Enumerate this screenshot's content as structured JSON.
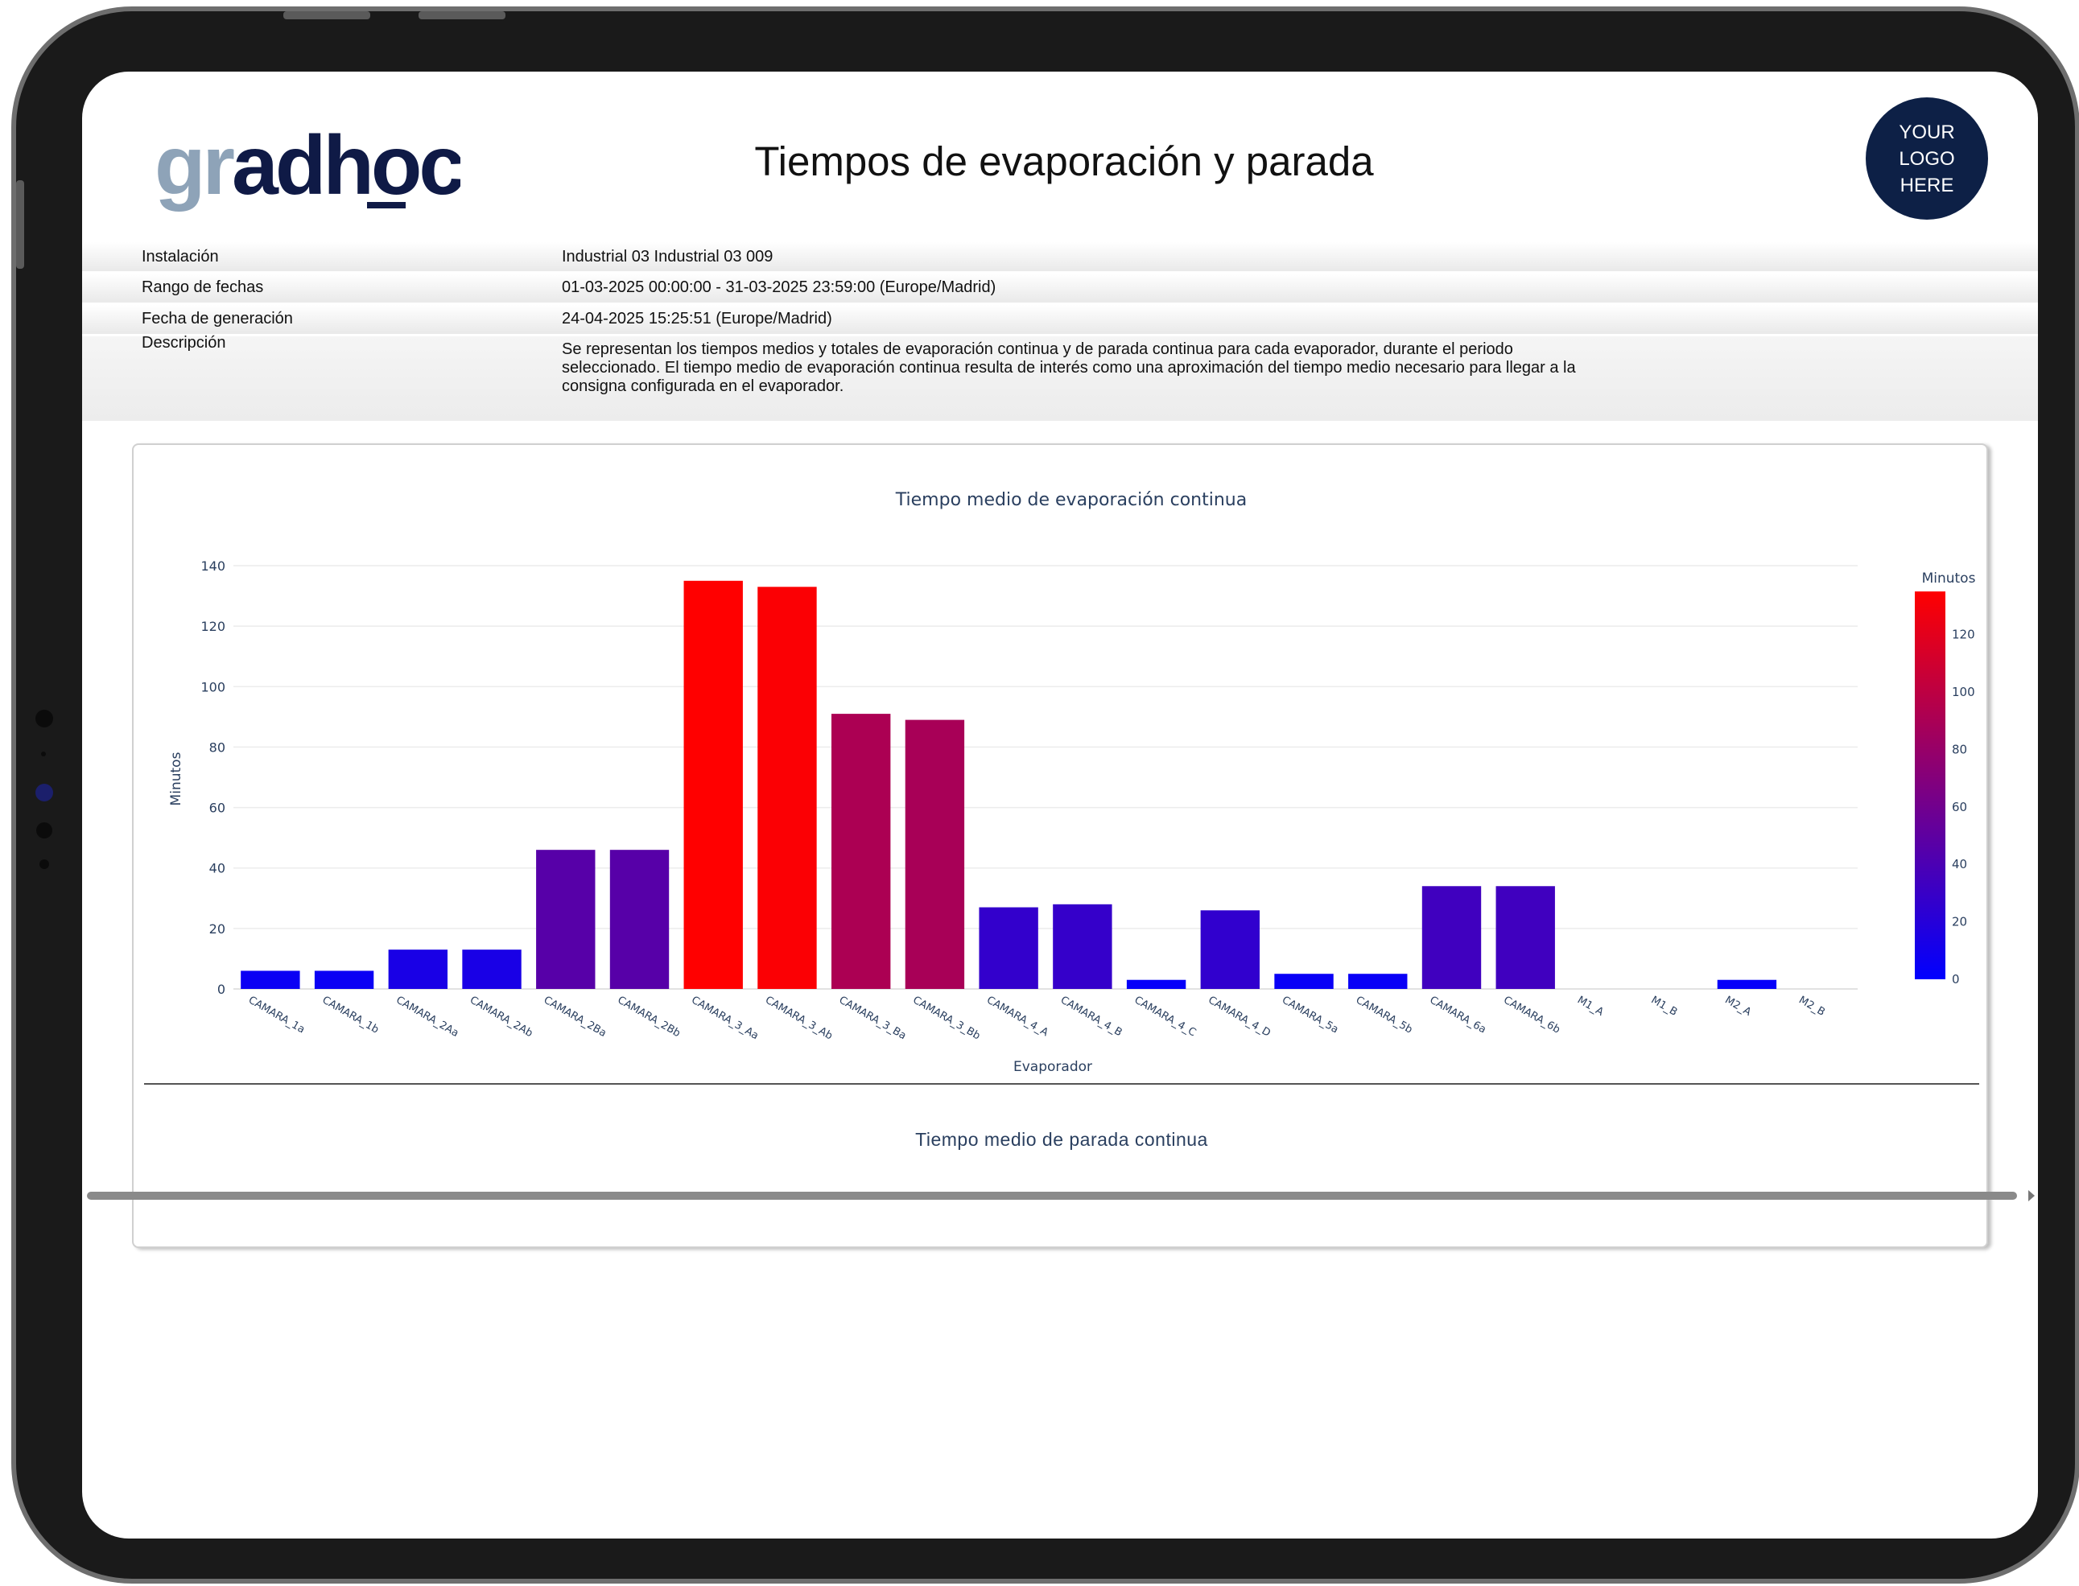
{
  "header": {
    "logo_text": "gradhoc",
    "title": "Tiempos de evaporación y parada",
    "corner_logo_lines": [
      "YOUR",
      "LOGO",
      "HERE"
    ]
  },
  "meta": {
    "rows": [
      {
        "label": "Instalación",
        "value": "Industrial 03 Industrial 03 009"
      },
      {
        "label": "Rango de fechas",
        "value": "01-03-2025 00:00:00 - 31-03-2025 23:59:00 (Europe/Madrid)"
      },
      {
        "label": "Fecha de generación",
        "value": "24-04-2025 15:25:51 (Europe/Madrid)"
      }
    ],
    "description_label": "Descripción",
    "description": "Se representan los tiempos medios y totales de evaporación continua y de parada continua para cada evaporador, durante el periodo seleccionado. El tiempo medio de evaporación continua resulta de interés como una aproximación del tiempo medio necesario para llegar a la consigna configurada en el evaporador."
  },
  "chart_data": {
    "type": "bar",
    "title": "Tiempo medio de evaporación continua",
    "xlabel": "Evaporador",
    "ylabel": "Minutos",
    "ylim": [
      0,
      140
    ],
    "yticks": [
      0,
      20,
      40,
      60,
      80,
      100,
      120,
      140
    ],
    "grid": true,
    "categories": [
      "CAMARA_1a",
      "CAMARA_1b",
      "CAMARA_2Aa",
      "CAMARA_2Ab",
      "CAMARA_2Ba",
      "CAMARA_2Bb",
      "CAMARA_3_Aa",
      "CAMARA_3_Ab",
      "CAMARA_3_Ba",
      "CAMARA_3_Bb",
      "CAMARA_4_A",
      "CAMARA_4_B",
      "CAMARA_4_C",
      "CAMARA_4_D",
      "CAMARA_5a",
      "CAMARA_5b",
      "CAMARA_6a",
      "CAMARA_6b",
      "M1_A",
      "M1_B",
      "M2_A",
      "M2_B"
    ],
    "values": [
      6,
      6,
      13,
      13,
      46,
      46,
      135,
      133,
      91,
      89,
      27,
      28,
      3,
      26,
      5,
      5,
      34,
      34,
      0,
      0,
      3,
      0
    ],
    "colorbar": {
      "title": "Minutos",
      "range": [
        0,
        135
      ],
      "ticks": [
        0,
        20,
        40,
        60,
        80,
        100,
        120
      ],
      "colors": [
        "#0000ff",
        "#ff0000"
      ],
      "placement": "right"
    }
  },
  "chart2": {
    "title": "Tiempo medio de parada continua"
  }
}
